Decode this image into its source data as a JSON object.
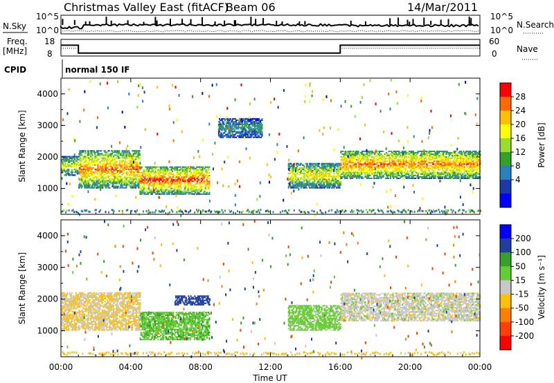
{
  "header": {
    "station": "Christmas Valley East (fitACF)",
    "beam": "Beam 06",
    "date": "14/Mar/2011"
  },
  "nsky_panel": {
    "left_label": "N.Sky",
    "right_label": "N.Search",
    "left_ticks": [
      "10^5",
      "10^0"
    ],
    "right_ticks": [
      "10^5",
      "10^0"
    ]
  },
  "freq_panel": {
    "left_label_line1": "Freq.",
    "left_label_line2": "[MHz]",
    "right_label": "Nave",
    "left_ticks": [
      "18",
      "8"
    ],
    "right_ticks": [
      "60",
      "0"
    ],
    "freq_mhz": {
      "x": [
        0,
        1.0,
        1.0,
        16.0,
        16.0,
        24.0
      ],
      "y": [
        14.5,
        14.5,
        9.8,
        9.8,
        14.5,
        14.5
      ]
    },
    "nave": {
      "x": [
        0,
        1.0,
        1.0,
        16.0,
        16.0,
        24.0
      ],
      "y": [
        28,
        28,
        10,
        10,
        28,
        28
      ]
    }
  },
  "cpid": {
    "label": "CPID",
    "value": "normal 150 IF"
  },
  "chart_data": [
    {
      "type": "heatmap",
      "panel": "power",
      "ylabel": "Slant Range [km]",
      "xlabel": "",
      "xlim": [
        0,
        24
      ],
      "ylim": [
        180,
        4500
      ],
      "x_ticks": [
        "00:00",
        "04:00",
        "08:00",
        "12:00",
        "16:00",
        "20:00",
        "00:00"
      ],
      "y_ticks": [
        "1000",
        "2000",
        "3000",
        "4000"
      ],
      "colorbar_label": "Power [dB]",
      "colorbar_ticks": [
        "28",
        "24",
        "20",
        "16",
        "12",
        "8",
        "4"
      ],
      "colorbar_colors": [
        "#ff0000",
        "#ff6a00",
        "#ffc000",
        "#ffff00",
        "#99dd33",
        "#33a02c",
        "#2b7fbf",
        "#1a3aa8",
        "#0000ff"
      ],
      "echo_bands": [
        {
          "from_ut": 0.0,
          "to_ut": 1.0,
          "range_km": [
            1400,
            2000
          ],
          "peak_db": 18
        },
        {
          "from_ut": 1.0,
          "to_ut": 4.5,
          "range_km": [
            1000,
            2200
          ],
          "peak_db": 26
        },
        {
          "from_ut": 4.5,
          "to_ut": 8.5,
          "range_km": [
            800,
            1700
          ],
          "peak_db": 28
        },
        {
          "from_ut": 9.0,
          "to_ut": 11.5,
          "range_km": [
            2600,
            3200
          ],
          "peak_db": 10
        },
        {
          "from_ut": 13.0,
          "to_ut": 16.0,
          "range_km": [
            1000,
            1800
          ],
          "peak_db": 20
        },
        {
          "from_ut": 16.0,
          "to_ut": 24.0,
          "range_km": [
            1300,
            2200
          ],
          "peak_db": 26
        }
      ]
    },
    {
      "type": "heatmap",
      "panel": "velocity",
      "ylabel": "Slant Range [km]",
      "xlabel": "Time UT",
      "xlim": [
        0,
        24
      ],
      "ylim": [
        180,
        4500
      ],
      "x_ticks": [
        "00:00",
        "04:00",
        "08:00",
        "12:00",
        "16:00",
        "20:00",
        "00:00"
      ],
      "y_ticks": [
        "1000",
        "2000",
        "3000",
        "4000"
      ],
      "colorbar_label": "Velocity [m s⁻¹]",
      "colorbar_ticks": [
        "200",
        "100",
        "50",
        "15",
        "-15",
        "-50",
        "-100",
        "-200"
      ],
      "colorbar_colors": [
        "#0000ff",
        "#1f3fa0",
        "#33a02c",
        "#66cc33",
        "#c8c8c8",
        "#ffc000",
        "#ff8000",
        "#ff4000",
        "#ff0000"
      ],
      "echo_bands": [
        {
          "from_ut": 0.0,
          "to_ut": 4.5,
          "range_km": [
            1000,
            2200
          ],
          "velocity": -15
        },
        {
          "from_ut": 4.5,
          "to_ut": 8.5,
          "range_km": [
            700,
            1600
          ],
          "velocity": 40
        },
        {
          "from_ut": 6.5,
          "to_ut": 8.5,
          "range_km": [
            1800,
            2100
          ],
          "velocity": 150
        },
        {
          "from_ut": 13.0,
          "to_ut": 16.0,
          "range_km": [
            1000,
            1800
          ],
          "velocity": 30
        },
        {
          "from_ut": 16.0,
          "to_ut": 24.0,
          "range_km": [
            1300,
            2200
          ],
          "velocity": 0
        }
      ]
    }
  ]
}
